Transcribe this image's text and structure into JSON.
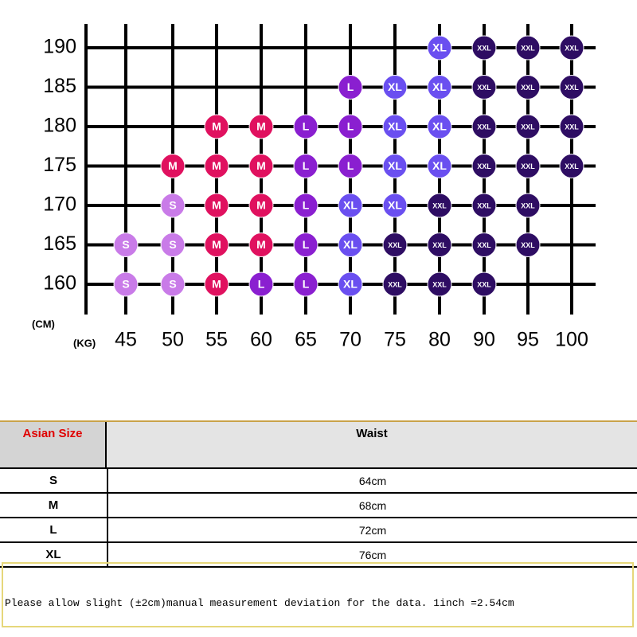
{
  "grid": {
    "y_unit": "(CM)",
    "x_unit": "(KG)",
    "columns": [
      45,
      50,
      55,
      60,
      65,
      70,
      75,
      80,
      90,
      95,
      100
    ],
    "colors": {
      "S": "#c97be8",
      "M": "#e0115f",
      "L": "#8a1fd0",
      "XL": "#6a4ff0",
      "XXL": "#2e0d63"
    },
    "rows": [
      {
        "height": 190,
        "cells": [
          null,
          null,
          null,
          null,
          null,
          null,
          null,
          "XL",
          "XXL",
          "XXL",
          "XXL"
        ]
      },
      {
        "height": 185,
        "cells": [
          null,
          null,
          null,
          null,
          null,
          "L",
          "XL",
          "XL",
          "XXL",
          "XXL",
          "XXL"
        ]
      },
      {
        "height": 180,
        "cells": [
          null,
          null,
          "M",
          "M",
          "L",
          "L",
          "XL",
          "XL",
          "XXL",
          "XXL",
          "XXL"
        ]
      },
      {
        "height": 175,
        "cells": [
          null,
          "M",
          "M",
          "M",
          "L",
          "L",
          "XL",
          "XL",
          "XXL",
          "XXL",
          "XXL"
        ]
      },
      {
        "height": 170,
        "cells": [
          null,
          "S",
          "M",
          "M",
          "L",
          "XL",
          "XL",
          "XXL",
          "XXL",
          "XXL",
          null
        ]
      },
      {
        "height": 165,
        "cells": [
          "S",
          "S",
          "M",
          "M",
          "L",
          "XL",
          "XXL",
          "XXL",
          "XXL",
          "XXL",
          null
        ]
      },
      {
        "height": 160,
        "cells": [
          "S",
          "S",
          "M",
          "L",
          "L",
          "XL",
          "XXL",
          "XXL",
          "XXL",
          null,
          null
        ]
      }
    ]
  },
  "table": {
    "header": [
      "Asian Size",
      "Waist"
    ],
    "rows": [
      [
        "S",
        "64cm"
      ],
      [
        "M",
        "68cm"
      ],
      [
        "L",
        "72cm"
      ],
      [
        "XL",
        "76cm"
      ]
    ]
  },
  "note": "Please allow slight (±2cm)manual measurement deviation for the data. 1inch =2.54cm"
}
